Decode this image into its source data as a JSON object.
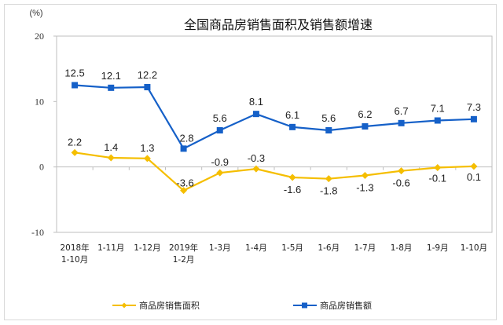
{
  "chart_data": {
    "type": "line",
    "title": "全国商品房销售面积及销售额增速",
    "ylabel": "(%)",
    "xlabel": "",
    "ylim": [
      -10,
      20
    ],
    "yticks": [
      "20",
      "10",
      "0",
      "-10"
    ],
    "categories": [
      [
        "2018年",
        "1-10月"
      ],
      [
        "1-11月"
      ],
      [
        "1-12月"
      ],
      [
        "2019年",
        "1-2月"
      ],
      [
        "1-3月"
      ],
      [
        "1-4月"
      ],
      [
        "1-5月"
      ],
      [
        "1-6月"
      ],
      [
        "1-7月"
      ],
      [
        "1-8月"
      ],
      [
        "1-9月"
      ],
      [
        "1-10月"
      ]
    ],
    "series": [
      {
        "name": "商品房销售面积",
        "color": "#F5BE00",
        "marker": "diamond",
        "values": [
          2.2,
          1.4,
          1.3,
          -3.6,
          -0.9,
          -0.3,
          -1.6,
          -1.8,
          -1.3,
          -0.6,
          -0.1,
          0.1
        ],
        "labels": [
          "2.2",
          "1.4",
          "1.3",
          "-3.6",
          "-0.9",
          "-0.3",
          "-1.6",
          "-1.8",
          "-1.3",
          "-0.6",
          "-0.1",
          "0.1"
        ]
      },
      {
        "name": "商品房销售额",
        "color": "#1560C8",
        "marker": "square",
        "values": [
          12.5,
          12.1,
          12.2,
          2.8,
          5.6,
          8.1,
          6.1,
          5.6,
          6.2,
          6.7,
          7.1,
          7.3
        ],
        "labels": [
          "12.5",
          "12.1",
          "12.2",
          "2.8",
          "5.6",
          "8.1",
          "6.1",
          "5.6",
          "6.2",
          "6.7",
          "7.1",
          "7.3"
        ]
      }
    ],
    "grid": false,
    "legend_position": "bottom"
  }
}
